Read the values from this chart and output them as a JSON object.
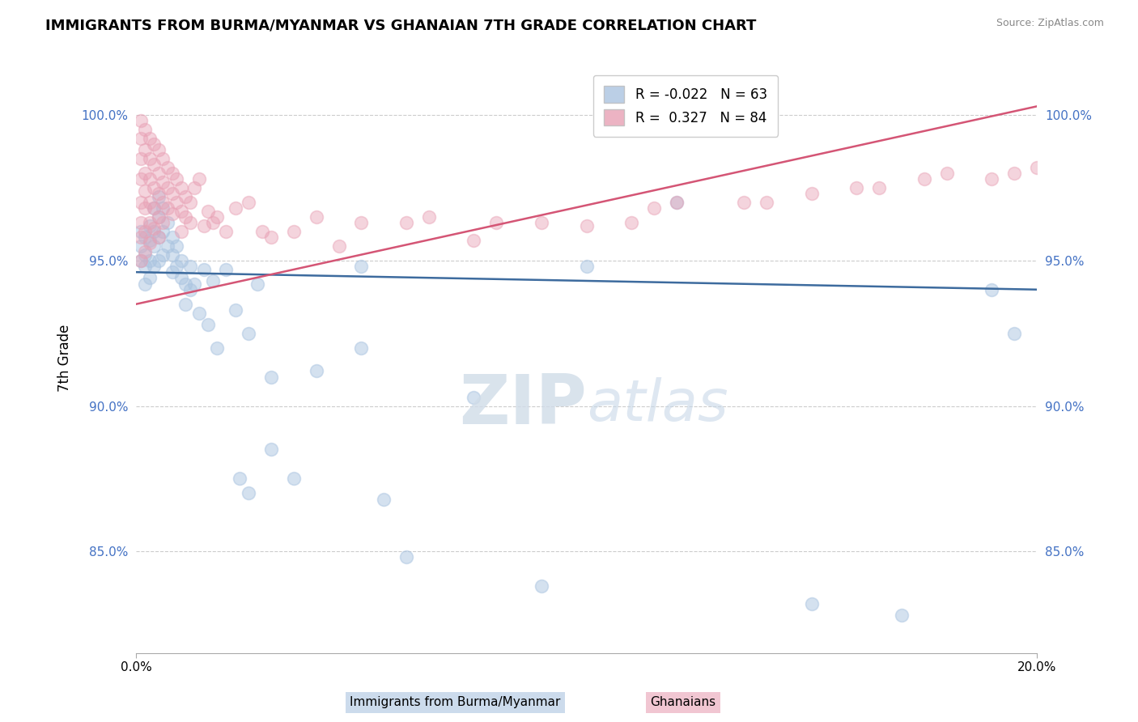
{
  "title": "IMMIGRANTS FROM BURMA/MYANMAR VS GHANAIAN 7TH GRADE CORRELATION CHART",
  "source": "Source: ZipAtlas.com",
  "ylabel": "7th Grade",
  "xlim": [
    0.0,
    0.2
  ],
  "ylim": [
    0.815,
    1.018
  ],
  "y_tick_vals": [
    0.85,
    0.9,
    0.95,
    1.0
  ],
  "y_tick_labels": [
    "85.0%",
    "90.0%",
    "95.0%",
    "100.0%"
  ],
  "blue_color": "#aac4e0",
  "pink_color": "#e8a0b4",
  "blue_line_color": "#3d6b9e",
  "pink_line_color": "#d45575",
  "blue_label": "Immigrants from Burma/Myanmar",
  "pink_label": "Ghanaians",
  "legend_blue": "R = -0.022   N = 63",
  "legend_pink": "R =  0.327   N = 84",
  "blue_line_x0": 0.0,
  "blue_line_y0": 0.946,
  "blue_line_x1": 0.2,
  "blue_line_y1": 0.94,
  "pink_line_x0": 0.0,
  "pink_line_y0": 0.935,
  "pink_line_x1": 0.2,
  "pink_line_y1": 1.003,
  "blue_x": [
    0.001,
    0.001,
    0.001,
    0.002,
    0.002,
    0.002,
    0.002,
    0.003,
    0.003,
    0.003,
    0.003,
    0.004,
    0.004,
    0.004,
    0.004,
    0.005,
    0.005,
    0.005,
    0.005,
    0.006,
    0.006,
    0.006,
    0.007,
    0.007,
    0.008,
    0.008,
    0.008,
    0.009,
    0.009,
    0.01,
    0.01,
    0.011,
    0.011,
    0.012,
    0.012,
    0.013,
    0.014,
    0.015,
    0.016,
    0.017,
    0.018,
    0.02,
    0.022,
    0.023,
    0.025,
    0.027,
    0.03,
    0.035,
    0.04,
    0.05,
    0.055,
    0.06,
    0.075,
    0.09,
    0.1,
    0.12,
    0.15,
    0.17,
    0.19,
    0.195,
    0.05,
    0.025,
    0.03
  ],
  "blue_y": [
    0.96,
    0.955,
    0.95,
    0.958,
    0.952,
    0.948,
    0.942,
    0.962,
    0.957,
    0.95,
    0.944,
    0.968,
    0.96,
    0.955,
    0.948,
    0.972,
    0.965,
    0.958,
    0.95,
    0.968,
    0.96,
    0.952,
    0.963,
    0.955,
    0.958,
    0.952,
    0.946,
    0.955,
    0.948,
    0.95,
    0.944,
    0.942,
    0.935,
    0.948,
    0.94,
    0.942,
    0.932,
    0.947,
    0.928,
    0.943,
    0.92,
    0.947,
    0.933,
    0.875,
    0.925,
    0.942,
    0.885,
    0.875,
    0.912,
    0.948,
    0.868,
    0.848,
    0.903,
    0.838,
    0.948,
    0.97,
    0.832,
    0.828,
    0.94,
    0.925,
    0.92,
    0.87,
    0.91
  ],
  "pink_x": [
    0.001,
    0.001,
    0.001,
    0.001,
    0.001,
    0.001,
    0.001,
    0.001,
    0.002,
    0.002,
    0.002,
    0.002,
    0.002,
    0.002,
    0.002,
    0.003,
    0.003,
    0.003,
    0.003,
    0.003,
    0.003,
    0.004,
    0.004,
    0.004,
    0.004,
    0.004,
    0.005,
    0.005,
    0.005,
    0.005,
    0.005,
    0.006,
    0.006,
    0.006,
    0.006,
    0.007,
    0.007,
    0.007,
    0.008,
    0.008,
    0.008,
    0.009,
    0.009,
    0.01,
    0.01,
    0.01,
    0.011,
    0.011,
    0.012,
    0.012,
    0.013,
    0.014,
    0.015,
    0.016,
    0.017,
    0.018,
    0.02,
    0.022,
    0.025,
    0.028,
    0.03,
    0.035,
    0.04,
    0.045,
    0.05,
    0.06,
    0.065,
    0.075,
    0.08,
    0.09,
    0.1,
    0.11,
    0.115,
    0.12,
    0.135,
    0.14,
    0.15,
    0.16,
    0.165,
    0.175,
    0.18,
    0.19,
    0.195,
    0.2
  ],
  "pink_y": [
    0.998,
    0.992,
    0.985,
    0.978,
    0.97,
    0.963,
    0.958,
    0.95,
    0.995,
    0.988,
    0.98,
    0.974,
    0.968,
    0.96,
    0.953,
    0.992,
    0.985,
    0.978,
    0.97,
    0.963,
    0.956,
    0.99,
    0.983,
    0.975,
    0.968,
    0.961,
    0.988,
    0.98,
    0.973,
    0.965,
    0.958,
    0.985,
    0.977,
    0.97,
    0.963,
    0.982,
    0.975,
    0.968,
    0.98,
    0.973,
    0.966,
    0.978,
    0.97,
    0.975,
    0.967,
    0.96,
    0.972,
    0.965,
    0.97,
    0.963,
    0.975,
    0.978,
    0.962,
    0.967,
    0.963,
    0.965,
    0.96,
    0.968,
    0.97,
    0.96,
    0.958,
    0.96,
    0.965,
    0.955,
    0.963,
    0.963,
    0.965,
    0.957,
    0.963,
    0.963,
    0.962,
    0.963,
    0.968,
    0.97,
    0.97,
    0.97,
    0.973,
    0.975,
    0.975,
    0.978,
    0.98,
    0.978,
    0.98,
    0.982
  ]
}
